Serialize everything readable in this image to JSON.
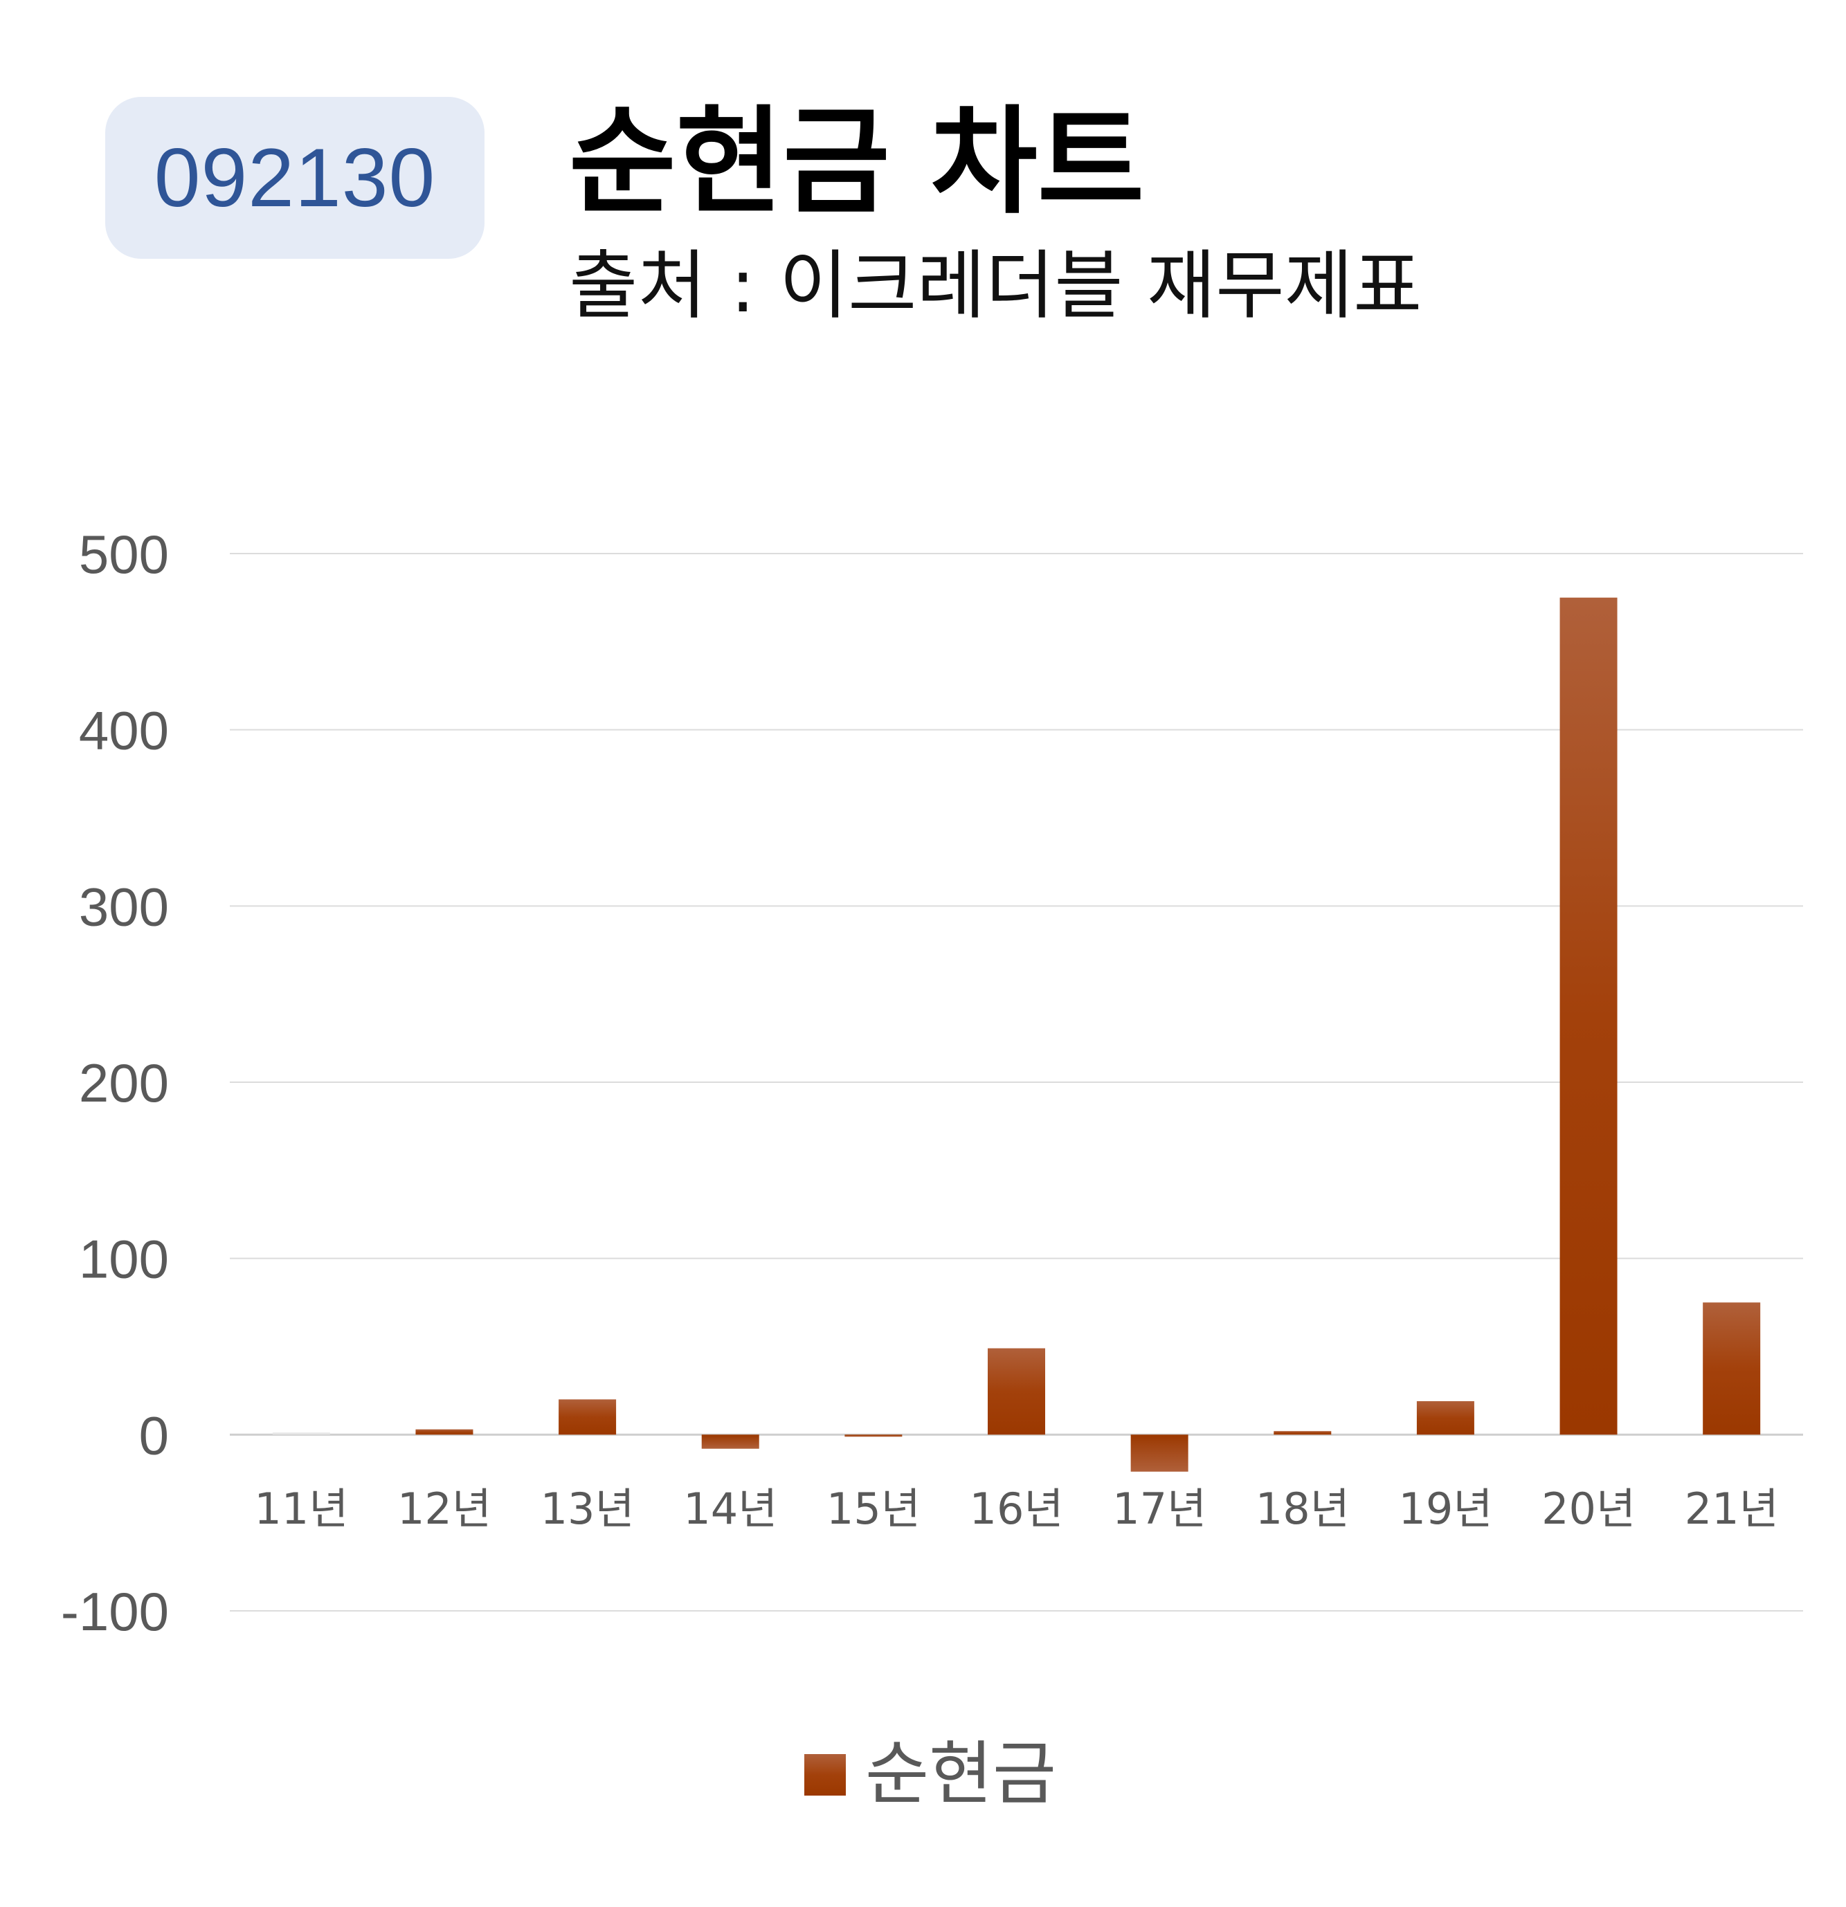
{
  "header": {
    "code": "092130",
    "title": "순현금 차트",
    "subtitle": "출처 : 이크레더블 재무제표"
  },
  "chart_data": {
    "type": "bar",
    "categories": [
      "11년",
      "12년",
      "13년",
      "14년",
      "15년",
      "16년",
      "17년",
      "18년",
      "19년",
      "20년",
      "21년"
    ],
    "series": [
      {
        "name": "순현금",
        "values": [
          0,
          3,
          20,
          -8,
          -1,
          49,
          -21,
          2,
          19,
          475,
          75
        ],
        "color": "#a03b00"
      }
    ],
    "yticks": [
      "500",
      "400",
      "300",
      "200",
      "100",
      "0",
      "-100"
    ],
    "ylim": [
      -100,
      500
    ],
    "grid": true,
    "legend": "bottom"
  }
}
